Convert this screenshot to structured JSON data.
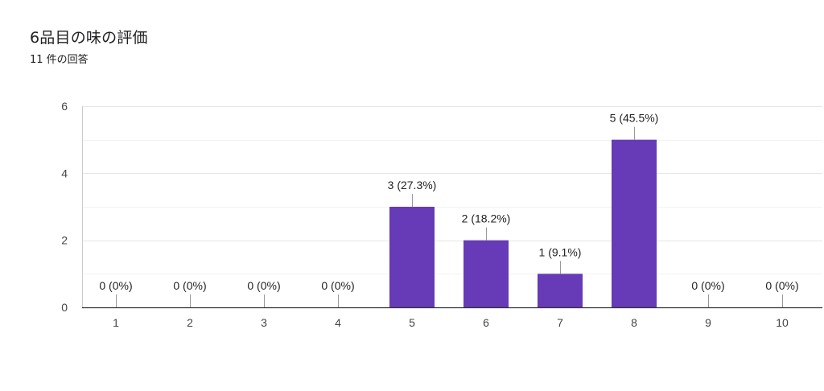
{
  "header": {
    "title": "6品目の味の評価",
    "response_count": "11 件の回答"
  },
  "chart_data": {
    "type": "bar",
    "categories": [
      "1",
      "2",
      "3",
      "4",
      "5",
      "6",
      "7",
      "8",
      "9",
      "10"
    ],
    "values": [
      0,
      0,
      0,
      0,
      3,
      2,
      1,
      5,
      0,
      0
    ],
    "data_labels": [
      "0 (0%)",
      "0 (0%)",
      "0 (0%)",
      "0 (0%)",
      "3 (27.3%)",
      "2 (18.2%)",
      "1 (9.1%)",
      "5 (45.5%)",
      "0 (0%)",
      "0 (0%)"
    ],
    "y_ticks": [
      0,
      2,
      4,
      6
    ],
    "ylim": [
      0,
      6
    ],
    "grid": true,
    "bar_color": "#673ab7",
    "title": "6品目の味の評価",
    "xlabel": "",
    "ylabel": ""
  }
}
